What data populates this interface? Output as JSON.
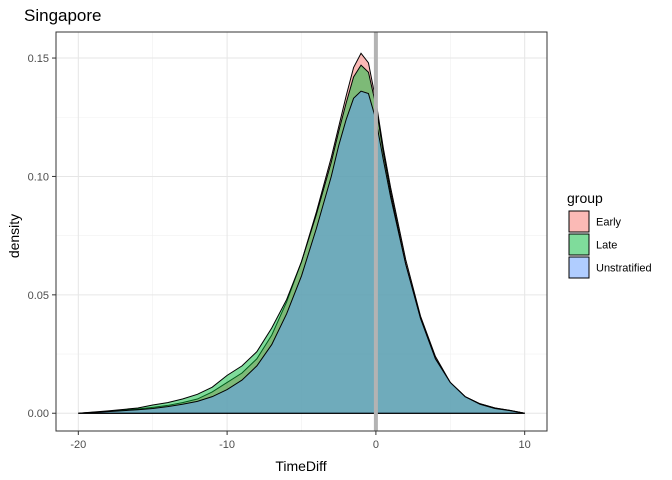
{
  "chart_data": {
    "type": "area",
    "title": "Singapore",
    "xlabel": "TimeDiff",
    "ylabel": "density",
    "xlim": [
      -21.5,
      11.5
    ],
    "ylim": [
      -0.0075,
      0.161
    ],
    "x_ticks": [
      -20,
      -10,
      0,
      10
    ],
    "x_tick_labels": [
      "-20",
      "-10",
      "0",
      "10"
    ],
    "y_ticks": [
      0.0,
      0.05,
      0.1,
      0.15
    ],
    "y_tick_labels": [
      "0.00",
      "0.05",
      "0.10",
      "0.15"
    ],
    "grid": true,
    "vline": {
      "x": 0,
      "color": "#b3b3b3"
    },
    "legend": {
      "title": "group",
      "placement": "right"
    },
    "series": [
      {
        "name": "Early",
        "color": "#F8766D",
        "x": [
          -20,
          -18,
          -16,
          -15,
          -14,
          -13,
          -12,
          -11,
          -10,
          -9,
          -8,
          -7,
          -6,
          -5,
          -4,
          -3,
          -2.5,
          -2,
          -1.5,
          -1,
          -0.5,
          0,
          0.5,
          1,
          2,
          3,
          4,
          5,
          6,
          7,
          8,
          9,
          10
        ],
        "y": [
          0.0,
          0.0008,
          0.0018,
          0.0025,
          0.0033,
          0.0045,
          0.006,
          0.009,
          0.013,
          0.017,
          0.023,
          0.033,
          0.047,
          0.064,
          0.085,
          0.108,
          0.121,
          0.134,
          0.146,
          0.152,
          0.148,
          0.132,
          0.112,
          0.095,
          0.065,
          0.041,
          0.024,
          0.013,
          0.007,
          0.004,
          0.0022,
          0.0012,
          0.0
        ]
      },
      {
        "name": "Late",
        "color": "#00BA38",
        "x": [
          -20,
          -18,
          -16,
          -15,
          -14,
          -13,
          -12,
          -11,
          -10,
          -9,
          -8,
          -7,
          -6,
          -5,
          -4,
          -3,
          -2.5,
          -2,
          -1.5,
          -1,
          -0.5,
          0,
          0.5,
          1,
          2,
          3,
          4,
          5,
          6,
          7,
          8,
          9,
          10
        ],
        "y": [
          0.0,
          0.001,
          0.0022,
          0.0035,
          0.0045,
          0.006,
          0.008,
          0.011,
          0.016,
          0.02,
          0.026,
          0.036,
          0.048,
          0.064,
          0.084,
          0.106,
          0.119,
          0.131,
          0.142,
          0.147,
          0.144,
          0.13,
          0.11,
          0.093,
          0.063,
          0.04,
          0.023,
          0.013,
          0.007,
          0.004,
          0.0022,
          0.0012,
          0.0
        ]
      },
      {
        "name": "Unstratified",
        "color": "#619CFF",
        "x": [
          -20,
          -18,
          -16,
          -15,
          -14,
          -13,
          -12,
          -11,
          -10,
          -9,
          -8,
          -7,
          -6,
          -5,
          -4,
          -3,
          -2.5,
          -2,
          -1.5,
          -1,
          -0.5,
          0,
          0.5,
          1,
          2,
          3,
          4,
          5,
          6,
          7,
          8,
          9,
          10
        ],
        "y": [
          0.0,
          0.0007,
          0.0015,
          0.002,
          0.0028,
          0.0038,
          0.005,
          0.007,
          0.01,
          0.014,
          0.02,
          0.029,
          0.042,
          0.058,
          0.078,
          0.1,
          0.113,
          0.124,
          0.133,
          0.136,
          0.135,
          0.124,
          0.107,
          0.091,
          0.063,
          0.04,
          0.023,
          0.013,
          0.007,
          0.0038,
          0.002,
          0.0011,
          0.0
        ]
      }
    ]
  }
}
